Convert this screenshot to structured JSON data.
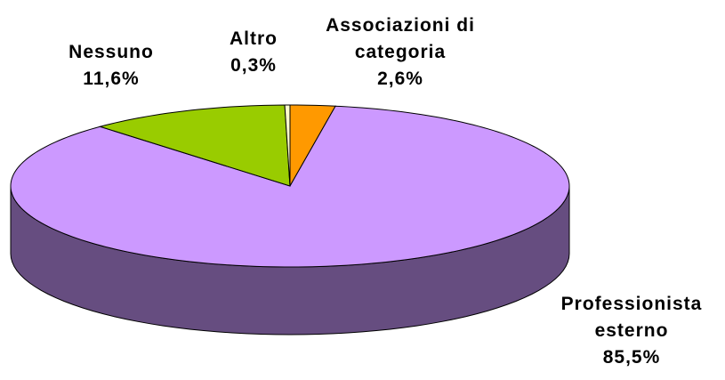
{
  "chart_data": {
    "type": "pie",
    "categories": [
      "Associazioni di categoria",
      "Professionista esterno",
      "Nessuno",
      "Altro"
    ],
    "values": [
      2.6,
      85.5,
      11.6,
      0.3
    ],
    "value_labels": [
      "2,6%",
      "85,5%",
      "11,6%",
      "0,3%"
    ],
    "colors": [
      "#ff9900",
      "#cc99ff",
      "#99cc00",
      "#ffffcc"
    ]
  }
}
